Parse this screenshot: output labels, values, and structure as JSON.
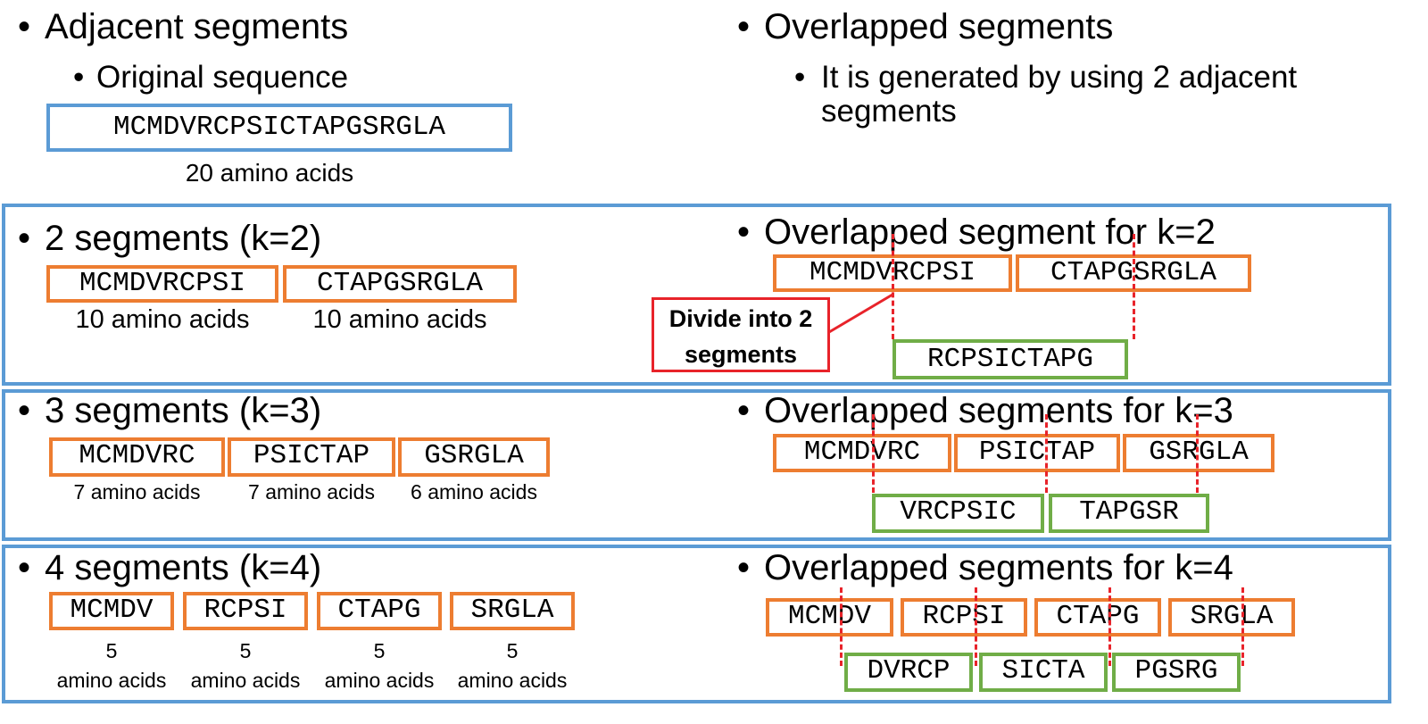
{
  "top": {
    "left_heading": "Adjacent segments",
    "left_sub": "Original sequence",
    "original_sequence": "MCMDVRCPSICTAPGSRGLA",
    "original_caption": "20 amino acids",
    "right_heading": "Overlapped segments",
    "right_sub": "It is generated by using 2 adjacent segments"
  },
  "k2": {
    "heading": "2 segments (k=2)",
    "segments": [
      "MCMDVRCPSI",
      "CTAPGSRGLA"
    ],
    "captions": [
      "10 amino acids",
      "10 amino acids"
    ],
    "overlap_heading": "Overlapped segment for k=2",
    "overlap_segments": [
      "MCMDVRCPSI",
      "CTAPGSRGLA"
    ],
    "overlapped": [
      "RCPSICTAPG"
    ],
    "callout": "Divide into 2 segments"
  },
  "k3": {
    "heading": "3 segments (k=3)",
    "segments": [
      "MCMDVRC",
      "PSICTAP",
      "GSRGLA"
    ],
    "captions": [
      "7 amino acids",
      "7 amino acids",
      "6 amino acids"
    ],
    "overlap_heading": "Overlapped segments for k=3",
    "overlap_segments": [
      "MCMDVRC",
      "PSICTAP",
      "GSRGLA"
    ],
    "overlapped": [
      "VRCPSIC",
      "TAPGSR"
    ]
  },
  "k4": {
    "heading": "4 segments (k=4)",
    "segments": [
      "MCMDV",
      "RCPSI",
      "CTAPG",
      "SRGLA"
    ],
    "caption_numbers": [
      "5",
      "5",
      "5",
      "5"
    ],
    "caption_units": [
      "amino acids",
      "amino acids",
      "amino acids",
      "amino acids"
    ],
    "overlap_heading": "Overlapped segments for k=4",
    "overlap_segments": [
      "MCMDV",
      "RCPSI",
      "CTAPG",
      "SRGLA"
    ],
    "overlapped": [
      "DVRCP",
      "SICTA",
      "PGSRG"
    ]
  },
  "colors": {
    "section_border": "#5B9BD5",
    "segment_border": "#ED7D31",
    "overlap_border": "#70AD47",
    "divider": "#E8232A"
  }
}
